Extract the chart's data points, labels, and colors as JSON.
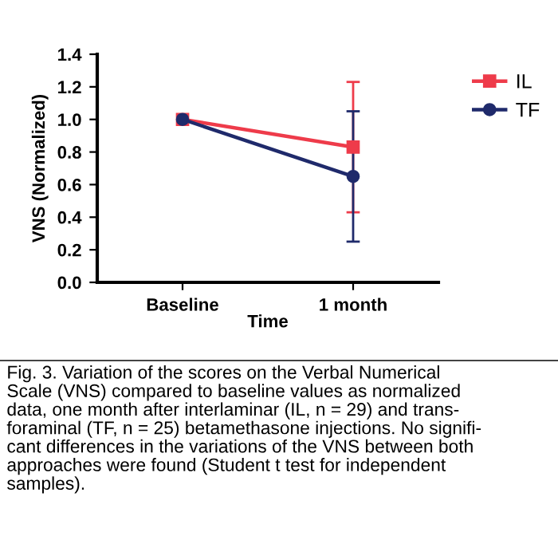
{
  "chart_data": {
    "type": "line",
    "xlabel": "Time",
    "ylabel": "VNS (Normalized)",
    "categories": [
      "Baseline",
      "1 month"
    ],
    "series": [
      {
        "name": "IL",
        "color": "#ee3b4a",
        "marker": "square",
        "values": [
          1.0,
          0.83
        ],
        "errors": [
          null,
          0.4
        ]
      },
      {
        "name": "TF",
        "color": "#1f2a6b",
        "marker": "circle",
        "values": [
          1.0,
          0.65
        ],
        "errors": [
          null,
          0.4
        ]
      }
    ],
    "ylim": [
      0,
      1.4
    ],
    "yticks": [
      {
        "value": 0,
        "label": "0.0"
      },
      {
        "value": 0.2,
        "label": "0.2"
      },
      {
        "value": 0.4,
        "label": "0.4"
      },
      {
        "value": 0.6,
        "label": "0.6"
      },
      {
        "value": 0.8,
        "label": "0.8"
      },
      {
        "value": 1.0,
        "label": "1.0"
      },
      {
        "value": 1.2,
        "label": "1.2"
      },
      {
        "value": 1.4,
        "label": "1.4"
      }
    ],
    "grid": false,
    "legend": "top right",
    "line_style": "solid",
    "annotations": [
      "Fig. 3. Variation of the scores on the Verbal Numerical\nScale (VNS) compared to baseline values as normalized\ndata, one month after interlaminar (IL, n = 29) and trans-\nforaminal (TF, n = 25) betamethasone injections. No signifi-\ncant differences in the variations of the VNS between both\napproaches were found (Student t test for independent\nsamples)."
    ]
  }
}
